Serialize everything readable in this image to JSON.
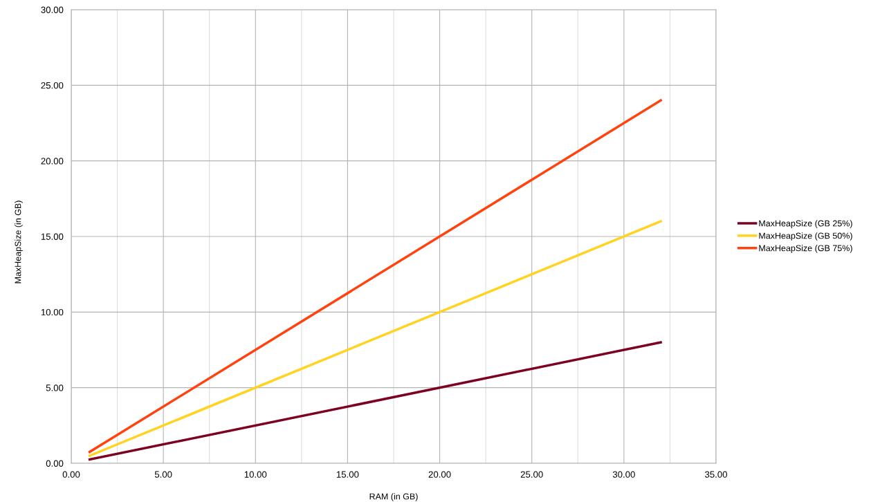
{
  "chart_data": {
    "type": "line",
    "xlabel": "RAM (in GB)",
    "ylabel": "MaxHeapSize (in GB)",
    "x": [
      1,
      32
    ],
    "series": [
      {
        "name": "MaxHeapSize (GB 25%)",
        "color": "#7e0021",
        "values": [
          0.25,
          8
        ]
      },
      {
        "name": "MaxHeapSize (GB 50%)",
        "color": "#ffd320",
        "values": [
          0.5,
          16
        ]
      },
      {
        "name": "MaxHeapSize (GB 75%)",
        "color": "#ff420e",
        "values": [
          0.75,
          24
        ]
      }
    ],
    "xlim": [
      0,
      35
    ],
    "xticks": [
      {
        "value": 0,
        "label": "0.00"
      },
      {
        "value": 2.5,
        "label": null
      },
      {
        "value": 5,
        "label": "5.00"
      },
      {
        "value": 7.5,
        "label": null
      },
      {
        "value": 10,
        "label": "10.00"
      },
      {
        "value": 12.5,
        "label": null
      },
      {
        "value": 15,
        "label": "15.00"
      },
      {
        "value": 17.5,
        "label": null
      },
      {
        "value": 20,
        "label": "20.00"
      },
      {
        "value": 22.5,
        "label": null
      },
      {
        "value": 25,
        "label": "25.00"
      },
      {
        "value": 27.5,
        "label": null
      },
      {
        "value": 30,
        "label": "30.00"
      },
      {
        "value": 32.5,
        "label": null
      },
      {
        "value": 35,
        "label": "35.00"
      }
    ],
    "ylim": [
      0,
      30
    ],
    "yticks": [
      {
        "value": 0,
        "label": "0.00"
      },
      {
        "value": 5,
        "label": "5.00"
      },
      {
        "value": 10,
        "label": "10.00"
      },
      {
        "value": 15,
        "label": "15.00"
      },
      {
        "value": 20,
        "label": "20.00"
      },
      {
        "value": 25,
        "label": "25.00"
      },
      {
        "value": 30,
        "label": "30.00"
      }
    ],
    "grid": true,
    "legend": "right",
    "marker": "none",
    "line_style": "solid"
  }
}
